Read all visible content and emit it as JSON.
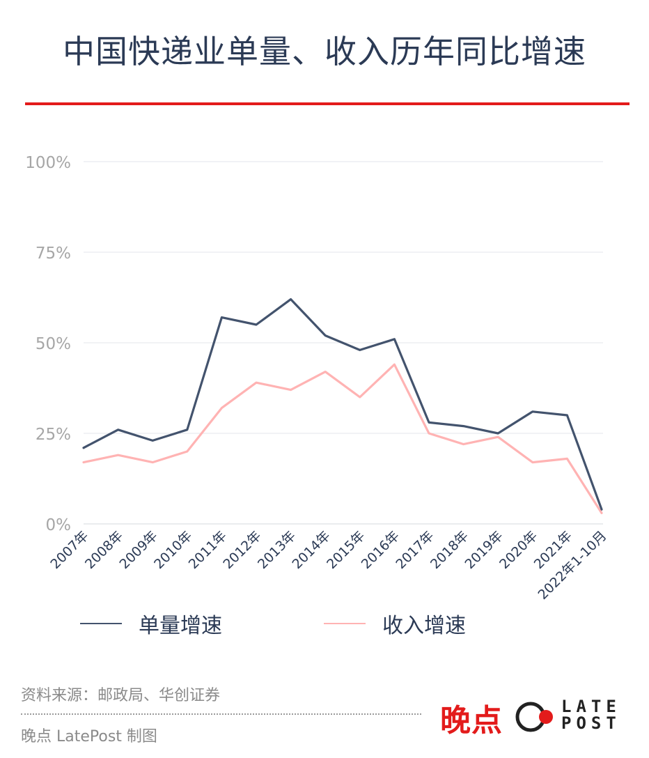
{
  "title": "中国快递业单量、收入历年同比增速",
  "chart_data": {
    "type": "line",
    "categories": [
      "2007年",
      "2008年",
      "2009年",
      "2010年",
      "2011年",
      "2012年",
      "2013年",
      "2014年",
      "2015年",
      "2016年",
      "2017年",
      "2018年",
      "2019年",
      "2020年",
      "2021年",
      "2022年1-10月"
    ],
    "y_ticks": [
      "0%",
      "25%",
      "50%",
      "75%",
      "100%"
    ],
    "ylim": [
      0,
      100
    ],
    "grid": true,
    "legend_position": "bottom",
    "series": [
      {
        "name": "单量增速",
        "color": "#43536d",
        "values": [
          21,
          26,
          23,
          26,
          57,
          55,
          62,
          52,
          48,
          51,
          28,
          27,
          25,
          31,
          30,
          4
        ]
      },
      {
        "name": "收入增速",
        "color": "#ffb3b3",
        "values": [
          17,
          19,
          17,
          20,
          32,
          39,
          37,
          42,
          35,
          44,
          25,
          22,
          24,
          17,
          18,
          3
        ]
      }
    ]
  },
  "footer": {
    "source": "资料来源：邮政局、华创证券",
    "credit": "晚点 LatePost 制图",
    "brand_cn": "晚点",
    "brand_en_line1": "LATE",
    "brand_en_line2": "POST"
  }
}
